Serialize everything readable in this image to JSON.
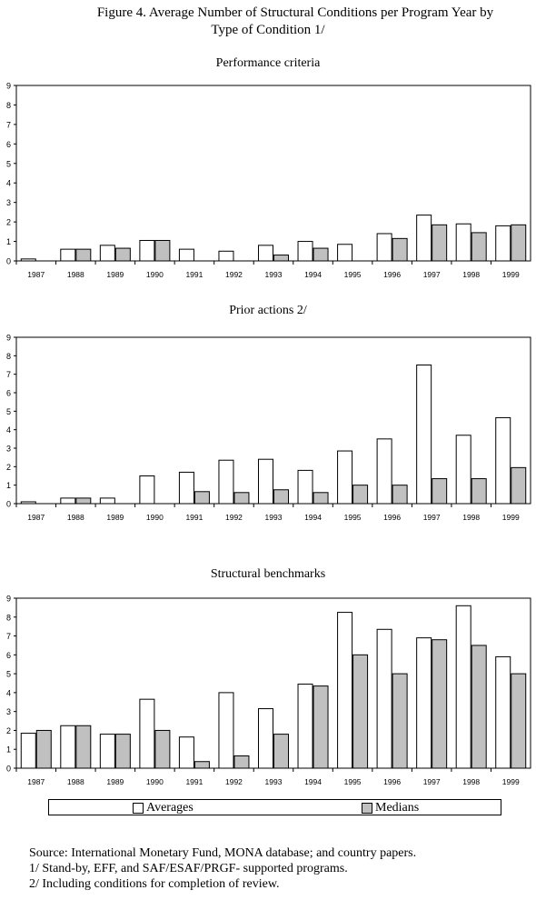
{
  "figure": {
    "title_line1": "Figure 4.  Average Number of Structural Conditions per Program Year by",
    "title_line2": "Type of Condition 1/"
  },
  "legend": {
    "averages": "Averages",
    "medians": "Medians"
  },
  "colors": {
    "averages": "#ffffff",
    "medians": "#c0c0c0",
    "stroke": "#000000"
  },
  "footnotes": [
    "Source: International Monetary Fund, MONA database; and country papers.",
    "1/ Stand-by, EFF, and  SAF/ESAF/PRGF- supported programs.",
    "2/ Including conditions for completion of review."
  ],
  "chart_data": [
    {
      "type": "bar",
      "title": "Performance criteria",
      "categories": [
        "1987",
        "1988",
        "1989",
        "1990",
        "1991",
        "1992",
        "1993",
        "1994",
        "1995",
        "1996",
        "1997",
        "1998",
        "1999"
      ],
      "ylim": [
        0,
        9
      ],
      "yticks": [
        "0",
        "1",
        "2",
        "3",
        "4",
        "5",
        "6",
        "7",
        "8",
        "9"
      ],
      "series": [
        {
          "name": "Averages",
          "values": [
            0.1,
            0.6,
            0.8,
            1.05,
            0.6,
            0.5,
            0.8,
            1.0,
            0.85,
            1.4,
            2.35,
            1.9,
            1.8
          ]
        },
        {
          "name": "Medians",
          "values": [
            0,
            0.6,
            0.65,
            1.05,
            0,
            0,
            0.3,
            0.65,
            0,
            1.15,
            1.85,
            1.45,
            1.85
          ]
        }
      ]
    },
    {
      "type": "bar",
      "title": "Prior actions  2/",
      "categories": [
        "1987",
        "1988",
        "1989",
        "1990",
        "1991",
        "1992",
        "1993",
        "1994",
        "1995",
        "1996",
        "1997",
        "1998",
        "1999"
      ],
      "ylim": [
        0,
        9
      ],
      "yticks": [
        "0",
        "1",
        "2",
        "3",
        "4",
        "5",
        "6",
        "7",
        "8",
        "9"
      ],
      "series": [
        {
          "name": "Averages",
          "values": [
            0.1,
            0.3,
            0.3,
            1.5,
            1.7,
            2.35,
            2.4,
            1.8,
            2.85,
            3.5,
            7.5,
            3.7,
            4.65
          ]
        },
        {
          "name": "Medians",
          "values": [
            0,
            0.3,
            0,
            0,
            0.65,
            0.6,
            0.75,
            0.6,
            1.0,
            1.0,
            1.35,
            1.35,
            1.95
          ]
        }
      ]
    },
    {
      "type": "bar",
      "title": "Structural benchmarks",
      "categories": [
        "1987",
        "1988",
        "1989",
        "1990",
        "1991",
        "1992",
        "1993",
        "1994",
        "1995",
        "1996",
        "1997",
        "1998",
        "1999"
      ],
      "ylim": [
        0,
        9
      ],
      "yticks": [
        "0",
        "1",
        "2",
        "3",
        "4",
        "5",
        "6",
        "7",
        "8",
        "9"
      ],
      "series": [
        {
          "name": "Averages",
          "values": [
            1.85,
            2.25,
            1.8,
            3.65,
            1.65,
            4.0,
            3.15,
            4.45,
            8.25,
            7.35,
            6.9,
            8.6,
            5.9
          ]
        },
        {
          "name": "Medians",
          "values": [
            2.0,
            2.25,
            1.8,
            2.0,
            0.35,
            0.65,
            1.8,
            4.35,
            6.0,
            5.0,
            6.8,
            6.5,
            5.0
          ]
        }
      ]
    }
  ]
}
